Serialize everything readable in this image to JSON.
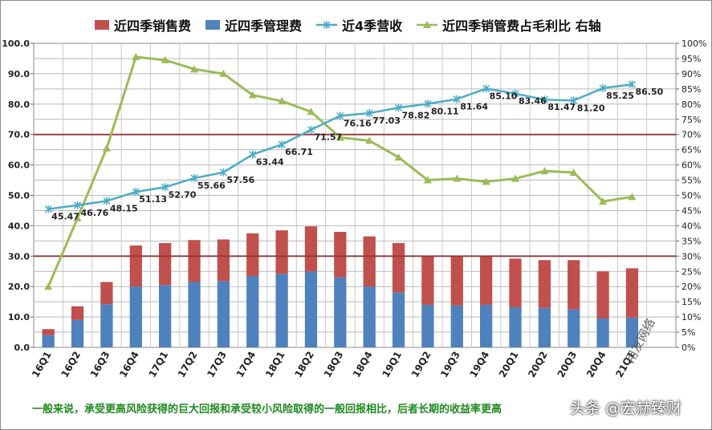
{
  "legend": {
    "sales_expense": "近四季销售费",
    "admin_expense": "近四季管理费",
    "revenue": "近4季营收",
    "ratio": "近四季销管费占毛利比 右轴"
  },
  "caption": "一般来说，承受更高风险获得的巨大回报和承受较小风险取得的一般回报相比，后者长期的收益率更高",
  "watermark": "头条 @宏赫臻财",
  "logo_text": "用友网络",
  "colors": {
    "sales": "#c0504d",
    "admin": "#4f81bd",
    "revenue": "#4bacc6",
    "ratio": "#9bbb59",
    "refline": "#943634",
    "caption": "#1f8a1f"
  },
  "chart_data": {
    "type": "bar",
    "categories": [
      "16Q1",
      "16Q2",
      "16Q3",
      "16Q4",
      "17Q1",
      "17Q2",
      "17Q3",
      "17Q4",
      "18Q1",
      "18Q2",
      "18Q3",
      "18Q4",
      "19Q1",
      "19Q2",
      "19Q3",
      "19Q4",
      "20Q1",
      "20Q2",
      "20Q3",
      "20Q4",
      "21Q1"
    ],
    "series": [
      {
        "name": "近四季管理费",
        "type": "stacked-bar",
        "axis": "left",
        "values": [
          4.0,
          9.0,
          14.2,
          20.0,
          20.5,
          21.5,
          21.8,
          23.5,
          24.2,
          25.0,
          23.0,
          20.0,
          18.0,
          14.0,
          13.8,
          14.0,
          13.2,
          13.0,
          12.5,
          9.5,
          9.8
        ]
      },
      {
        "name": "近四季销售费",
        "type": "stacked-bar",
        "axis": "left",
        "values": [
          2.0,
          4.5,
          7.3,
          13.5,
          13.8,
          13.8,
          13.7,
          14.0,
          14.3,
          14.8,
          15.0,
          16.5,
          16.3,
          16.0,
          16.2,
          16.0,
          16.0,
          15.7,
          16.2,
          15.5,
          16.2
        ]
      },
      {
        "name": "近4季营收",
        "type": "line",
        "axis": "left",
        "values": [
          45.47,
          46.76,
          48.15,
          51.13,
          52.7,
          55.66,
          57.56,
          63.44,
          66.71,
          71.57,
          76.16,
          77.03,
          78.82,
          80.11,
          81.64,
          85.1,
          83.46,
          81.47,
          81.2,
          85.25,
          86.5
        ],
        "labels": [
          "45.47",
          "46.76",
          "48.15",
          "51.13",
          "52.70",
          "55.66",
          "57.56",
          "63.44",
          "66.71",
          "71.57",
          "76.16",
          "77.03",
          "78.82",
          "80.11",
          "81.64",
          "85.10",
          "83.46",
          "81.47",
          "81.20",
          "85.25",
          "86.50"
        ]
      },
      {
        "name": "近四季销管费占毛利比 右轴",
        "type": "line",
        "axis": "right",
        "values": [
          20,
          42.5,
          65.5,
          95.5,
          94.5,
          91.5,
          90,
          83,
          81,
          77.5,
          69,
          68,
          62.5,
          55,
          55.5,
          54.5,
          55.5,
          58,
          57.5,
          48,
          49.5
        ]
      }
    ],
    "y_left": {
      "min": 0,
      "max": 100,
      "ticks": [
        "0.0",
        "10.0",
        "20.0",
        "30.0",
        "40.0",
        "50.0",
        "60.0",
        "70.0",
        "80.0",
        "90.0",
        "100.0"
      ]
    },
    "y_right": {
      "min": 0,
      "max": 100,
      "ticks": [
        "0%",
        "5%",
        "10%",
        "15%",
        "20%",
        "25%",
        "30%",
        "35%",
        "40%",
        "45%",
        "50%",
        "55%",
        "60%",
        "65%",
        "70%",
        "75%",
        "80%",
        "85%",
        "90%",
        "95%",
        "100%"
      ]
    },
    "reference_lines_left": [
      30,
      70
    ],
    "grid": true,
    "legend_position": "top"
  }
}
